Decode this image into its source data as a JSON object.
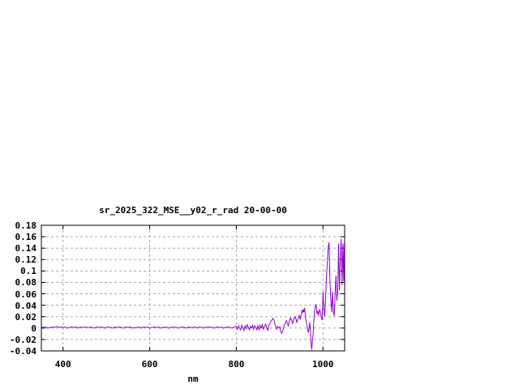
{
  "window": {
    "background": "#ffffff"
  },
  "chart_data": {
    "type": "line",
    "title": "sr_2025_322_MSE__y02_r_rad 20-00-00",
    "xlabel": "nm",
    "ylabel": "",
    "xlim": [
      350,
      1050
    ],
    "ylim": [
      -0.04,
      0.18
    ],
    "xticks": [
      400,
      600,
      800,
      1000
    ],
    "xtick_labels": [
      "400",
      "600",
      "800",
      "1000"
    ],
    "yticks": [
      -0.04,
      -0.02,
      0,
      0.02,
      0.04,
      0.06,
      0.08,
      0.1,
      0.12,
      0.14,
      0.16,
      0.18
    ],
    "ytick_labels": [
      "-0.04",
      "-0.02",
      "0",
      "0.02",
      "0.04",
      "0.06",
      "0.08",
      "0.1",
      "0.12",
      "0.14",
      "0.16",
      "0.18"
    ],
    "grid": true,
    "legend_position": "none",
    "line_color": "#9400d3",
    "grid_color": "#a8a8a8",
    "frame_color": "#000000",
    "y_unit": 0.001,
    "points": [
      [
        350,
        2
      ],
      [
        355,
        1
      ],
      [
        360,
        2
      ],
      [
        365,
        0
      ],
      [
        370,
        1
      ],
      [
        375,
        2
      ],
      [
        380,
        1
      ],
      [
        385,
        3
      ],
      [
        390,
        1
      ],
      [
        395,
        2
      ],
      [
        400,
        1
      ],
      [
        405,
        2
      ],
      [
        410,
        0
      ],
      [
        415,
        1
      ],
      [
        420,
        2
      ],
      [
        425,
        1
      ],
      [
        430,
        2
      ],
      [
        435,
        0
      ],
      [
        440,
        2
      ],
      [
        445,
        1
      ],
      [
        450,
        2
      ],
      [
        455,
        1
      ],
      [
        460,
        1
      ],
      [
        465,
        2
      ],
      [
        470,
        0
      ],
      [
        475,
        1
      ],
      [
        480,
        2
      ],
      [
        485,
        1
      ],
      [
        490,
        2
      ],
      [
        495,
        0
      ],
      [
        500,
        1
      ],
      [
        505,
        2
      ],
      [
        510,
        1
      ],
      [
        515,
        0
      ],
      [
        520,
        2
      ],
      [
        525,
        1
      ],
      [
        530,
        2
      ],
      [
        535,
        1
      ],
      [
        540,
        0
      ],
      [
        545,
        2
      ],
      [
        550,
        1
      ],
      [
        555,
        2
      ],
      [
        560,
        0
      ],
      [
        565,
        1
      ],
      [
        570,
        1
      ],
      [
        575,
        2
      ],
      [
        580,
        0
      ],
      [
        585,
        2
      ],
      [
        590,
        1
      ],
      [
        595,
        2
      ],
      [
        600,
        0
      ],
      [
        605,
        1
      ],
      [
        610,
        2
      ],
      [
        615,
        1
      ],
      [
        620,
        2
      ],
      [
        625,
        0
      ],
      [
        630,
        1
      ],
      [
        635,
        2
      ],
      [
        640,
        1
      ],
      [
        645,
        0
      ],
      [
        650,
        2
      ],
      [
        655,
        1
      ],
      [
        660,
        2
      ],
      [
        665,
        0
      ],
      [
        670,
        1
      ],
      [
        675,
        2
      ],
      [
        680,
        1
      ],
      [
        685,
        0
      ],
      [
        690,
        2
      ],
      [
        695,
        1
      ],
      [
        700,
        1
      ],
      [
        705,
        2
      ],
      [
        710,
        0
      ],
      [
        715,
        2
      ],
      [
        720,
        1
      ],
      [
        725,
        0
      ],
      [
        730,
        2
      ],
      [
        735,
        1
      ],
      [
        740,
        2
      ],
      [
        745,
        1
      ],
      [
        750,
        0
      ],
      [
        755,
        2
      ],
      [
        760,
        1
      ],
      [
        765,
        2
      ],
      [
        770,
        0
      ],
      [
        775,
        1
      ],
      [
        780,
        2
      ],
      [
        785,
        1
      ],
      [
        790,
        0
      ],
      [
        795,
        2
      ],
      [
        800,
        3
      ],
      [
        802.5,
        -2
      ],
      [
        805,
        4
      ],
      [
        807.5,
        0
      ],
      [
        810,
        -3
      ],
      [
        812.5,
        5
      ],
      [
        815,
        1
      ],
      [
        817.5,
        -4
      ],
      [
        820,
        4
      ],
      [
        822.5,
        -1
      ],
      [
        825,
        6
      ],
      [
        827.5,
        2
      ],
      [
        830,
        -3
      ],
      [
        832.5,
        3
      ],
      [
        835,
        0
      ],
      [
        837.5,
        5
      ],
      [
        840,
        -2
      ],
      [
        842.5,
        4
      ],
      [
        845,
        1
      ],
      [
        847.5,
        -3
      ],
      [
        850,
        4
      ],
      [
        852.5,
        -3
      ],
      [
        855,
        5
      ],
      [
        857.5,
        0
      ],
      [
        860,
        6
      ],
      [
        862.5,
        -2
      ],
      [
        865,
        3
      ],
      [
        867.5,
        7
      ],
      [
        870,
        1
      ],
      [
        872.5,
        -4
      ],
      [
        875,
        5
      ],
      [
        877.5,
        8
      ],
      [
        880,
        12
      ],
      [
        882.5,
        15
      ],
      [
        885,
        17
      ],
      [
        887.5,
        12
      ],
      [
        890,
        5
      ],
      [
        892.5,
        -2
      ],
      [
        895,
        3
      ],
      [
        897.5,
        0
      ],
      [
        900,
        2
      ],
      [
        902.5,
        -6
      ],
      [
        905,
        -9
      ],
      [
        907.5,
        -4
      ],
      [
        910,
        3
      ],
      [
        912.5,
        8
      ],
      [
        915,
        13
      ],
      [
        917.5,
        9
      ],
      [
        920,
        4
      ],
      [
        922.5,
        12
      ],
      [
        925,
        18
      ],
      [
        927.5,
        14
      ],
      [
        930,
        8
      ],
      [
        932.5,
        15
      ],
      [
        935,
        20
      ],
      [
        937.5,
        16
      ],
      [
        940,
        10
      ],
      [
        942.5,
        17
      ],
      [
        945,
        22
      ],
      [
        947.5,
        15
      ],
      [
        950,
        25
      ],
      [
        951.5,
        31
      ],
      [
        953,
        27
      ],
      [
        954.5,
        33
      ],
      [
        956,
        28
      ],
      [
        957.5,
        35
      ],
      [
        959,
        24
      ],
      [
        960.5,
        15
      ],
      [
        962,
        8
      ],
      [
        963.5,
        3
      ],
      [
        965,
        -4
      ],
      [
        966.5,
        -8
      ],
      [
        968,
        2
      ],
      [
        969.5,
        10
      ],
      [
        971,
        -5
      ],
      [
        972.5,
        -25
      ],
      [
        974,
        -38
      ],
      [
        975.5,
        -24
      ],
      [
        977,
        -12
      ],
      [
        978.5,
        5
      ],
      [
        980,
        28
      ],
      [
        982,
        35
      ],
      [
        984,
        42
      ],
      [
        986,
        25
      ],
      [
        988,
        30
      ],
      [
        990,
        22
      ],
      [
        992,
        33
      ],
      [
        994,
        28
      ],
      [
        996,
        20
      ],
      [
        998,
        14
      ],
      [
        1000,
        64
      ],
      [
        1002,
        35
      ],
      [
        1004,
        21
      ],
      [
        1006,
        50
      ],
      [
        1008,
        90
      ],
      [
        1010,
        113
      ],
      [
        1012,
        142
      ],
      [
        1014,
        150
      ],
      [
        1016,
        85
      ],
      [
        1018,
        50
      ],
      [
        1020,
        28
      ],
      [
        1022,
        64
      ],
      [
        1024,
        30
      ],
      [
        1026,
        21
      ],
      [
        1028,
        60
      ],
      [
        1030,
        92
      ],
      [
        1032,
        48
      ],
      [
        1034,
        66
      ],
      [
        1036,
        148
      ],
      [
        1038,
        66
      ],
      [
        1040,
        120
      ],
      [
        1042,
        156
      ],
      [
        1044,
        75
      ],
      [
        1046,
        148
      ],
      [
        1048,
        82
      ],
      [
        1049,
        148
      ],
      [
        1050,
        140
      ]
    ]
  }
}
